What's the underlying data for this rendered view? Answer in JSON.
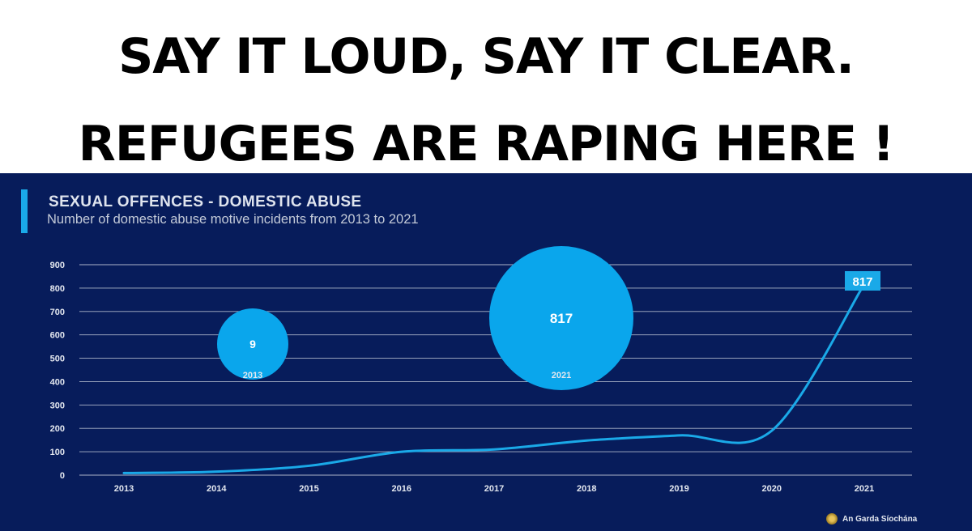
{
  "headline": {
    "line1": "SAY IT LOUD, SAY IT CLEAR.",
    "line2": "REFUGEES ARE RAPING HERE !"
  },
  "colors": {
    "panel_bg": "#071c5b",
    "accent": "#1aa9e8",
    "line": "#1aa9e8",
    "bubble": "#0aa6ec"
  },
  "footer": {
    "logo_text": "An Garda Síochána",
    "logo_icon": "garda-crest-icon"
  },
  "chart_data": {
    "type": "line",
    "title": "SEXUAL OFFENCES - DOMESTIC ABUSE",
    "subtitle": "Number of domestic abuse motive incidents from 2013 to 2021",
    "categories": [
      "2013",
      "2014",
      "2015",
      "2016",
      "2017",
      "2018",
      "2019",
      "2020",
      "2021"
    ],
    "values": [
      9,
      15,
      40,
      100,
      110,
      148,
      170,
      190,
      817
    ],
    "ylim": [
      0,
      900
    ],
    "yticks": [
      0,
      100,
      200,
      300,
      400,
      500,
      600,
      700,
      800,
      900
    ],
    "grid": true,
    "end_label": "817",
    "annotations": [
      {
        "value": "9",
        "year": "2013"
      },
      {
        "value": "817",
        "year": "2021"
      }
    ]
  }
}
